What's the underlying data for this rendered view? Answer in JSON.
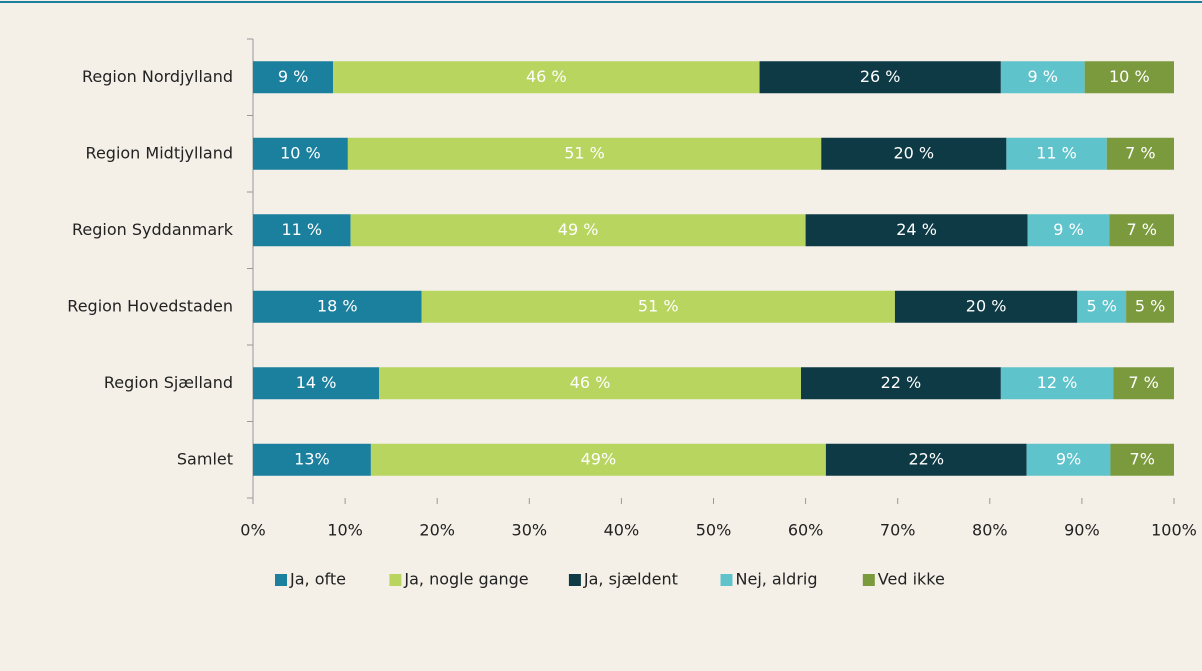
{
  "chart_data": {
    "type": "stacked-barh",
    "categories": [
      "Region Nordjylland",
      "Region Midtjylland",
      "Region Syddanmark",
      "Region Hovedstaden",
      "Region Sjælland",
      "Samlet"
    ],
    "series": [
      {
        "name": "Ja, ofte",
        "color": "#1b7f9e",
        "values": [
          8.7,
          10.3,
          10.6,
          18.3,
          13.7,
          12.8
        ],
        "value_labels": [
          "9 %",
          "10 %",
          "11 %",
          "18 %",
          "14 %",
          "13%"
        ]
      },
      {
        "name": "Ja, nogle gange",
        "color": "#b8d560",
        "values": [
          46.3,
          51.4,
          49.4,
          51.4,
          45.8,
          49.4
        ],
        "value_labels": [
          "46 %",
          "51 %",
          "49 %",
          "51 %",
          "46 %",
          "49%"
        ]
      },
      {
        "name": "Ja, sjældent",
        "color": "#0d3a45",
        "values": [
          26.2,
          20.1,
          24.1,
          19.8,
          21.7,
          21.8
        ],
        "value_labels": [
          "26 %",
          "20 %",
          "24 %",
          "20 %",
          "22 %",
          "22%"
        ]
      },
      {
        "name": "Nej, aldrig",
        "color": "#5fc3cb",
        "values": [
          9.1,
          10.9,
          8.9,
          5.3,
          12.2,
          9.1
        ],
        "value_labels": [
          "9 %",
          "11 %",
          "9 %",
          "5 %",
          "12 %",
          "9%"
        ]
      },
      {
        "name": "Ved ikke",
        "color": "#7b9a3e",
        "values": [
          9.7,
          7.3,
          7.0,
          5.2,
          6.6,
          6.9
        ],
        "value_labels": [
          "10 %",
          "7 %",
          "7 %",
          "5 %",
          "7 %",
          "7%"
        ]
      }
    ],
    "xlim": [
      0,
      100
    ],
    "xticks": [
      {
        "value": 0,
        "label": "0%"
      },
      {
        "value": 10,
        "label": "10%"
      },
      {
        "value": 20,
        "label": "20%"
      },
      {
        "value": 30,
        "label": "30%"
      },
      {
        "value": 40,
        "label": "40%"
      },
      {
        "value": 50,
        "label": "50%"
      },
      {
        "value": 60,
        "label": "60%"
      },
      {
        "value": 70,
        "label": "70%"
      },
      {
        "value": 80,
        "label": "80%"
      },
      {
        "value": 90,
        "label": "90%"
      },
      {
        "value": 100,
        "label": "100%"
      }
    ],
    "legend": "bottom"
  }
}
